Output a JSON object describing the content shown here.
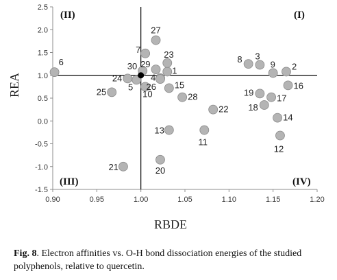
{
  "chart_data": {
    "type": "scatter",
    "xlabel": "RBDE",
    "ylabel": "REA",
    "xlim": [
      0.9,
      1.2
    ],
    "ylim": [
      -1.5,
      2.5
    ],
    "x_ticks": [
      "0.90",
      "0.95",
      "1.00",
      "1.05",
      "1.10",
      "1.15",
      "1.20"
    ],
    "y_ticks": [
      "2.5",
      "2.0",
      "1.5",
      "1.0",
      "0.5",
      "0.0",
      "-0.5",
      "-1.0",
      "-1.5"
    ],
    "grid": false,
    "reference_lines": {
      "x": 1.0,
      "y": 1.0
    },
    "quadrant_labels": {
      "top_left": "(II)",
      "top_right": "(I)",
      "bottom_left": "(III)",
      "bottom_right": "(IV)"
    },
    "colors": {
      "marker": "#b4b4b4",
      "marker_edge": "#8a8a8a",
      "reference": "#000000",
      "axis": "#8c8c8c"
    },
    "points": [
      {
        "label": "1",
        "x": 1.03,
        "y": 1.08
      },
      {
        "label": "2",
        "x": 1.165,
        "y": 1.08
      },
      {
        "label": "3",
        "x": 1.135,
        "y": 1.23
      },
      {
        "label": "4",
        "x": 1.022,
        "y": 0.94
      },
      {
        "label": "5",
        "x": 0.995,
        "y": 0.9
      },
      {
        "label": "6",
        "x": 0.902,
        "y": 1.07
      },
      {
        "label": "7",
        "x": 1.005,
        "y": 1.48
      },
      {
        "label": "8",
        "x": 1.122,
        "y": 1.25
      },
      {
        "label": "9",
        "x": 1.15,
        "y": 1.05
      },
      {
        "label": "10",
        "x": 1.005,
        "y": 0.75
      },
      {
        "label": "11",
        "x": 1.072,
        "y": -0.2
      },
      {
        "label": "12",
        "x": 1.158,
        "y": -0.32
      },
      {
        "label": "13",
        "x": 1.032,
        "y": -0.2
      },
      {
        "label": "14",
        "x": 1.155,
        "y": 0.07
      },
      {
        "label": "15",
        "x": 1.032,
        "y": 0.72
      },
      {
        "label": "16",
        "x": 1.167,
        "y": 0.78
      },
      {
        "label": "17",
        "x": 1.148,
        "y": 0.52
      },
      {
        "label": "18",
        "x": 1.14,
        "y": 0.35
      },
      {
        "label": "19",
        "x": 1.135,
        "y": 0.6
      },
      {
        "label": "20",
        "x": 1.022,
        "y": -0.85
      },
      {
        "label": "21",
        "x": 0.98,
        "y": -1.0
      },
      {
        "label": "22",
        "x": 1.082,
        "y": 0.25
      },
      {
        "label": "23",
        "x": 1.03,
        "y": 1.27
      },
      {
        "label": "24",
        "x": 0.985,
        "y": 0.93
      },
      {
        "label": "25",
        "x": 0.967,
        "y": 0.63
      },
      {
        "label": "26",
        "x": 1.022,
        "y": 0.92
      },
      {
        "label": "27",
        "x": 1.017,
        "y": 1.77
      },
      {
        "label": "28",
        "x": 1.047,
        "y": 0.52
      },
      {
        "label": "29",
        "x": 1.017,
        "y": 1.13
      },
      {
        "label": "30",
        "x": 1.002,
        "y": 1.1
      }
    ],
    "reference_point": {
      "x": 1.0,
      "y": 1.0
    }
  },
  "caption": {
    "prefix": "Fig. 8",
    "text": ". Electron affinities vs. O-H bond dissociation energies of the studied polyphenols, relative to quercetin."
  }
}
